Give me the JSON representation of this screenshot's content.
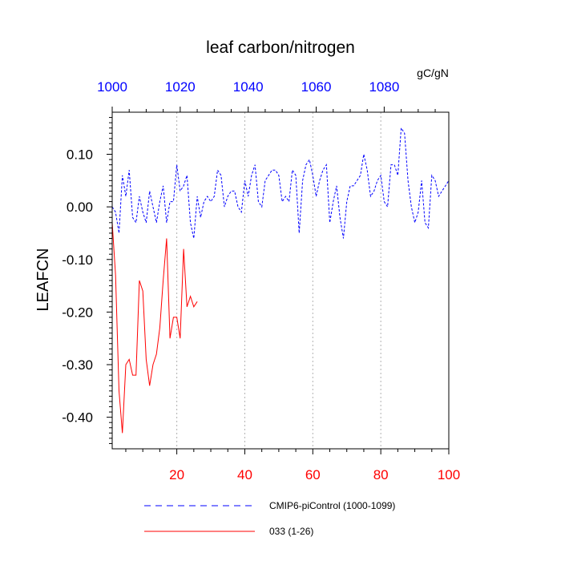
{
  "chart_data": {
    "type": "line",
    "title": "leaf carbon/nitrogen",
    "ylabel": "LEAFCN",
    "units": "gC/gN",
    "xlim": [
      1,
      100
    ],
    "ylim": [
      -0.46,
      0.18
    ],
    "x_bottom_ticks": [
      20,
      40,
      60,
      80,
      100
    ],
    "x_top_ticks": [
      1000,
      1020,
      1040,
      1060,
      1080
    ],
    "x_top_offset": 999,
    "y_ticks": [
      0.1,
      0.0,
      -0.1,
      -0.2,
      -0.3,
      -0.4
    ],
    "y_tick_labels": [
      "0.10",
      "0.00",
      "-0.10",
      "-0.20",
      "-0.30",
      "-0.40"
    ],
    "grid": "vertical dashed at bottom x ticks",
    "colors": {
      "bottom_axis": "#ff0000",
      "top_axis": "#0000ff",
      "axes": "#000000",
      "grid": "#b0b0b0"
    },
    "series": [
      {
        "name": "CMIP6-piControl (1000-1099)",
        "color": "#0000ff",
        "style": "dashed",
        "x": [
          1,
          2,
          3,
          4,
          5,
          6,
          7,
          8,
          9,
          10,
          11,
          12,
          13,
          14,
          15,
          16,
          17,
          18,
          19,
          20,
          21,
          22,
          23,
          24,
          25,
          26,
          27,
          28,
          29,
          30,
          31,
          32,
          33,
          34,
          35,
          36,
          37,
          38,
          39,
          40,
          41,
          42,
          43,
          44,
          45,
          46,
          47,
          48,
          49,
          50,
          51,
          52,
          53,
          54,
          55,
          56,
          57,
          58,
          59,
          60,
          61,
          62,
          63,
          64,
          65,
          66,
          67,
          68,
          69,
          70,
          71,
          72,
          73,
          74,
          75,
          76,
          77,
          78,
          79,
          80,
          81,
          82,
          83,
          84,
          85,
          86,
          87,
          88,
          89,
          90,
          91,
          92,
          93,
          94,
          95,
          96,
          97,
          98,
          99,
          100
        ],
        "values": [
          0.0,
          -0.01,
          -0.05,
          0.06,
          0.02,
          0.07,
          -0.02,
          -0.03,
          0.02,
          -0.01,
          -0.03,
          0.03,
          0.0,
          -0.03,
          0.01,
          0.04,
          -0.03,
          0.01,
          0.01,
          0.08,
          0.03,
          0.04,
          0.06,
          -0.03,
          -0.06,
          0.02,
          -0.02,
          0.01,
          0.02,
          0.01,
          0.02,
          0.07,
          0.06,
          0.0,
          0.02,
          0.03,
          0.03,
          0.0,
          -0.01,
          0.05,
          0.02,
          0.06,
          0.08,
          0.01,
          0.0,
          0.05,
          0.06,
          0.07,
          0.07,
          0.06,
          0.01,
          0.02,
          0.01,
          0.07,
          0.06,
          -0.05,
          0.05,
          0.08,
          0.09,
          0.06,
          0.02,
          0.05,
          0.07,
          0.08,
          -0.03,
          0.01,
          0.04,
          -0.02,
          -0.06,
          0.01,
          0.04,
          0.04,
          0.05,
          0.06,
          0.1,
          0.07,
          0.02,
          0.03,
          0.05,
          0.06,
          0.01,
          0.0,
          0.08,
          0.08,
          0.06,
          0.15,
          0.14,
          0.05,
          0.0,
          -0.03,
          -0.01,
          0.05,
          -0.03,
          -0.04,
          0.06,
          0.05,
          0.02,
          0.03,
          0.04,
          0.05
        ]
      },
      {
        "name": "033 (1-26)",
        "color": "#ff0000",
        "style": "solid",
        "x": [
          1,
          2,
          3,
          4,
          5,
          6,
          7,
          8,
          9,
          10,
          11,
          12,
          13,
          14,
          15,
          16,
          17,
          18,
          19,
          20,
          21,
          22,
          23,
          24,
          25,
          26
        ],
        "values": [
          -0.03,
          -0.13,
          -0.35,
          -0.43,
          -0.3,
          -0.29,
          -0.32,
          -0.32,
          -0.14,
          -0.16,
          -0.29,
          -0.34,
          -0.3,
          -0.28,
          -0.23,
          -0.14,
          -0.06,
          -0.25,
          -0.21,
          -0.21,
          -0.25,
          -0.08,
          -0.19,
          -0.17,
          -0.19,
          -0.18
        ]
      }
    ]
  }
}
